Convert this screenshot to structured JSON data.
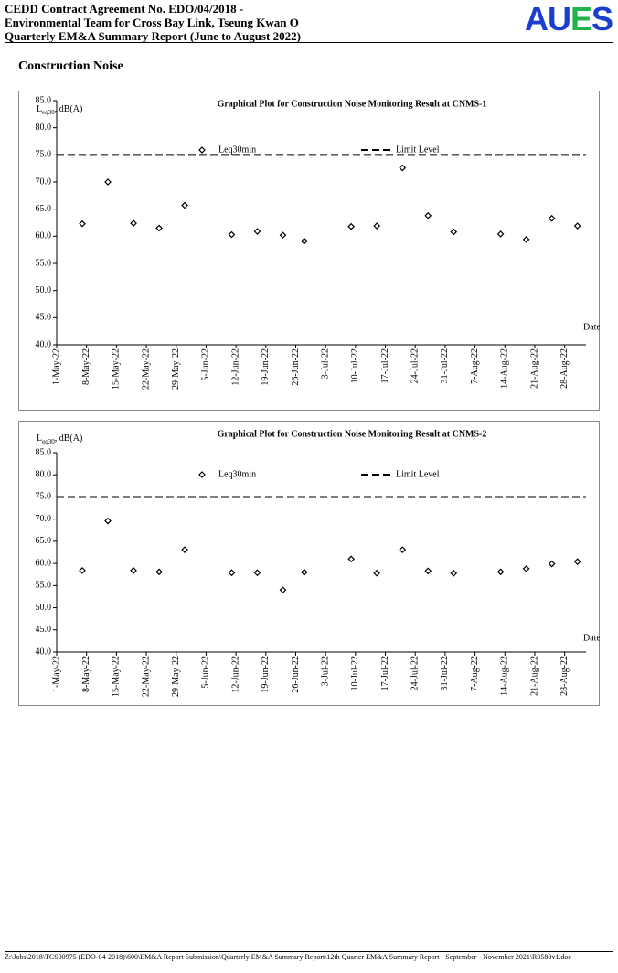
{
  "header": {
    "lines": [
      "CEDD Contract Agreement No. EDO/04/2018 -",
      "Environmental Team for Cross Bay Link, Tseung Kwan O",
      "Quarterly EM&A Summary Report (June to August 2022)"
    ],
    "logo": [
      "AU",
      "E",
      "S"
    ]
  },
  "section_title": "Construction Noise",
  "chart_data": [
    {
      "type": "scatter",
      "title": "Graphical Plot for Construction Noise Monitoring Result at CNMS-1",
      "ylabel": [
        "L",
        "eq30",
        ", dB(A)"
      ],
      "xlabel": "Date",
      "xlim": [
        "2022-05-01",
        "2022-09-02"
      ],
      "xticks": [
        {
          "value": "2022-05-01",
          "label": "1-May-22"
        },
        {
          "value": "2022-05-08",
          "label": "8-May-22"
        },
        {
          "value": "2022-05-15",
          "label": "15-May-22"
        },
        {
          "value": "2022-05-22",
          "label": "22-May-22"
        },
        {
          "value": "2022-05-29",
          "label": "29-May-22"
        },
        {
          "value": "2022-06-05",
          "label": "5-Jun-22"
        },
        {
          "value": "2022-06-12",
          "label": "12-Jun-22"
        },
        {
          "value": "2022-06-19",
          "label": "19-Jun-22"
        },
        {
          "value": "2022-06-26",
          "label": "26-Jun-22"
        },
        {
          "value": "2022-07-03",
          "label": "3-Jul-22"
        },
        {
          "value": "2022-07-10",
          "label": "10-Jul-22"
        },
        {
          "value": "2022-07-17",
          "label": "17-Jul-22"
        },
        {
          "value": "2022-07-24",
          "label": "24-Jul-22"
        },
        {
          "value": "2022-07-31",
          "label": "31-Jul-22"
        },
        {
          "value": "2022-08-07",
          "label": "7-Aug-22"
        },
        {
          "value": "2022-08-14",
          "label": "14-Aug-22"
        },
        {
          "value": "2022-08-21",
          "label": "21-Aug-22"
        },
        {
          "value": "2022-08-28",
          "label": "28-Aug-22"
        }
      ],
      "ylim": [
        40,
        85
      ],
      "yticks": [
        {
          "value": 40,
          "label": "40.0"
        },
        {
          "value": 45,
          "label": "45.0"
        },
        {
          "value": 50,
          "label": "50.0"
        },
        {
          "value": 55,
          "label": "55.0"
        },
        {
          "value": 60,
          "label": "60.0"
        },
        {
          "value": 65,
          "label": "65.0"
        },
        {
          "value": 70,
          "label": "70.0"
        },
        {
          "value": 75,
          "label": "75.0"
        },
        {
          "value": 80,
          "label": "80.0"
        },
        {
          "value": 85,
          "label": "85.0"
        }
      ],
      "series": [
        {
          "name": "Leq30min",
          "marker": "diamond",
          "color": "#000000",
          "x": [
            "2022-05-07",
            "2022-05-13",
            "2022-05-19",
            "2022-05-25",
            "2022-05-31",
            "2022-06-11",
            "2022-06-17",
            "2022-06-23",
            "2022-06-28",
            "2022-07-09",
            "2022-07-15",
            "2022-07-21",
            "2022-07-27",
            "2022-08-02",
            "2022-08-13",
            "2022-08-19",
            "2022-08-25",
            "2022-08-31"
          ],
          "values": [
            62.3,
            70.0,
            62.4,
            61.5,
            65.7,
            60.3,
            60.9,
            60.2,
            59.1,
            61.8,
            61.9,
            72.6,
            63.8,
            60.8,
            60.4,
            59.4,
            63.3,
            61.9
          ]
        },
        {
          "name": "Limit Level",
          "line": "dashed",
          "color": "#000000",
          "x": [
            "2022-05-01",
            "2022-09-02"
          ],
          "values": [
            75,
            75
          ]
        }
      ]
    },
    {
      "type": "scatter",
      "title": "Graphical Plot for Construction Noise Monitoring Result at CNMS-2",
      "ylabel": [
        "L",
        "eq30",
        ", dB(A)"
      ],
      "xlabel": "Date",
      "xlim": [
        "2022-05-01",
        "2022-09-02"
      ],
      "xticks": [
        {
          "value": "2022-05-01",
          "label": "1-May-22"
        },
        {
          "value": "2022-05-08",
          "label": "8-May-22"
        },
        {
          "value": "2022-05-15",
          "label": "15-May-22"
        },
        {
          "value": "2022-05-22",
          "label": "22-May-22"
        },
        {
          "value": "2022-05-29",
          "label": "29-May-22"
        },
        {
          "value": "2022-06-05",
          "label": "5-Jun-22"
        },
        {
          "value": "2022-06-12",
          "label": "12-Jun-22"
        },
        {
          "value": "2022-06-19",
          "label": "19-Jun-22"
        },
        {
          "value": "2022-06-26",
          "label": "26-Jun-22"
        },
        {
          "value": "2022-07-03",
          "label": "3-Jul-22"
        },
        {
          "value": "2022-07-10",
          "label": "10-Jul-22"
        },
        {
          "value": "2022-07-17",
          "label": "17-Jul-22"
        },
        {
          "value": "2022-07-24",
          "label": "24-Jul-22"
        },
        {
          "value": "2022-07-31",
          "label": "31-Jul-22"
        },
        {
          "value": "2022-08-07",
          "label": "7-Aug-22"
        },
        {
          "value": "2022-08-14",
          "label": "14-Aug-22"
        },
        {
          "value": "2022-08-21",
          "label": "21-Aug-22"
        },
        {
          "value": "2022-08-28",
          "label": "28-Aug-22"
        }
      ],
      "ylim": [
        40,
        85
      ],
      "yticks": [
        {
          "value": 40,
          "label": "40.0"
        },
        {
          "value": 45,
          "label": "45.0"
        },
        {
          "value": 50,
          "label": "50.0"
        },
        {
          "value": 55,
          "label": "55.0"
        },
        {
          "value": 60,
          "label": "60.0"
        },
        {
          "value": 65,
          "label": "65.0"
        },
        {
          "value": 70,
          "label": "70.0"
        },
        {
          "value": 75,
          "label": "75.0"
        },
        {
          "value": 80,
          "label": "80.0"
        },
        {
          "value": 85,
          "label": "85.0"
        }
      ],
      "series": [
        {
          "name": "Leq30min",
          "marker": "diamond",
          "color": "#000000",
          "x": [
            "2022-05-07",
            "2022-05-13",
            "2022-05-19",
            "2022-05-25",
            "2022-05-31",
            "2022-06-11",
            "2022-06-17",
            "2022-06-23",
            "2022-06-28",
            "2022-07-09",
            "2022-07-15",
            "2022-07-21",
            "2022-07-27",
            "2022-08-02",
            "2022-08-13",
            "2022-08-19",
            "2022-08-25",
            "2022-08-31"
          ],
          "values": [
            58.4,
            69.6,
            58.4,
            58.1,
            63.1,
            57.9,
            57.9,
            54.0,
            58.0,
            61.0,
            57.8,
            63.1,
            58.3,
            57.8,
            58.1,
            58.8,
            59.9,
            60.4
          ]
        },
        {
          "name": "Limit Level",
          "line": "dashed",
          "color": "#000000",
          "x": [
            "2022-05-01",
            "2022-09-02"
          ],
          "values": [
            75,
            75
          ]
        }
      ]
    }
  ],
  "footer": "Z:\\Jobs\\2018\\TCS00975 (EDO-04-2018)\\600\\EM&A Report Submission\\Quarterly EM&A Summary Report\\12th Quarter EM&A Summary Report - September - November 2021\\R0580v1.doc"
}
